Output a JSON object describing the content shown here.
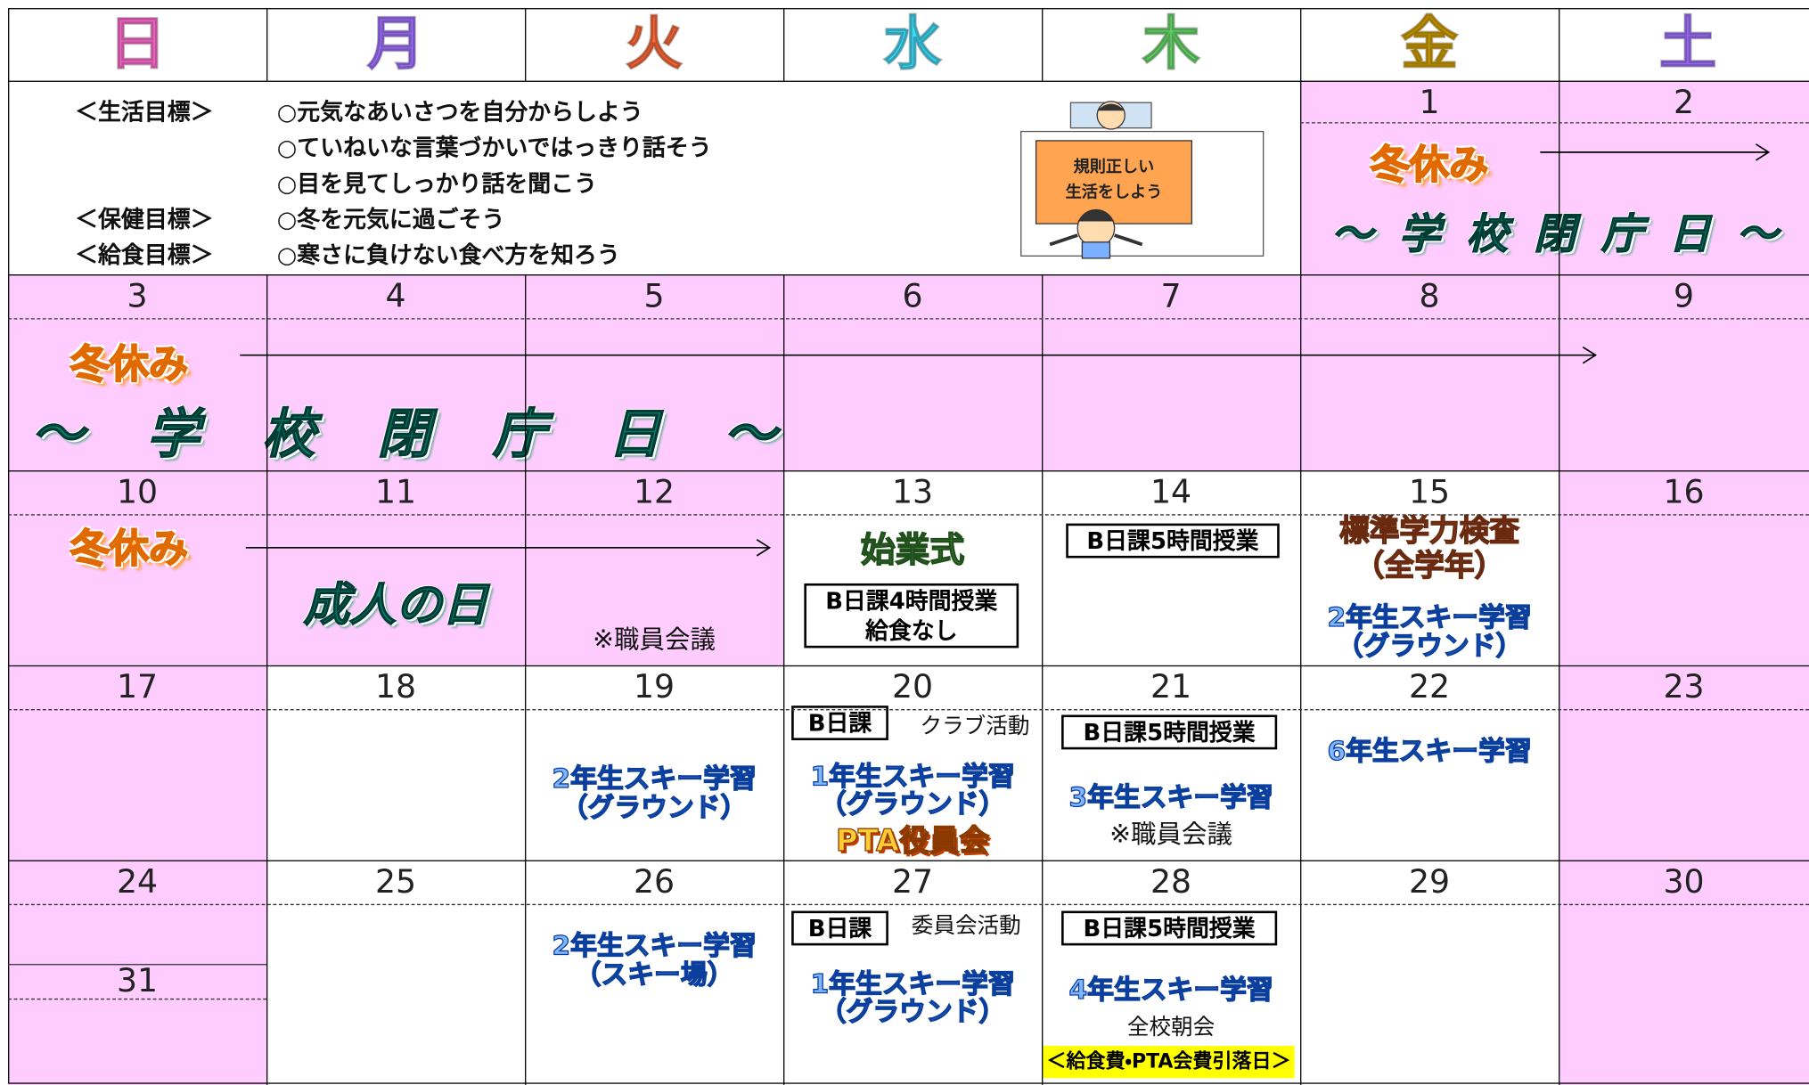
{
  "header": {
    "days": [
      "日",
      "月",
      "火",
      "水",
      "木",
      "金",
      "土"
    ]
  },
  "goals": {
    "life_label": "＜生活目標＞",
    "life": [
      "○元気なあいさつを自分からしよう",
      "○ていねいな言葉づかいではっきり話そう",
      "○目を見てしっかり話を聞こう"
    ],
    "health_label": "＜保健目標＞",
    "health": "○冬を元気に過ごそう",
    "lunch_label": "＜給食目標＞",
    "lunch": "○寒さに負けない食べ方を知ろう",
    "poster": [
      "規則正しい",
      "生活をしよう"
    ]
  },
  "dates": [
    1,
    2,
    3,
    4,
    5,
    6,
    7,
    8,
    9,
    10,
    11,
    12,
    13,
    14,
    15,
    16,
    17,
    18,
    19,
    20,
    21,
    22,
    23,
    24,
    25,
    26,
    27,
    28,
    29,
    30,
    31
  ],
  "events": [
    "冬休み",
    "～ 学 校 閉 庁 日 ～",
    "冬休み",
    "～ 学 校 閉 庁 日 ～",
    "冬休み",
    "成人の日",
    "※職員会議",
    "始業式",
    "B日課4時間授業",
    "給食なし",
    "B日課5時間授業",
    "標準学力検査",
    "（全学年）",
    "2年生スキー学習",
    "（グラウンド）",
    "2年生スキー学習",
    "（グラウンド）",
    "B日課",
    "クラブ活動",
    "1年生スキー学習",
    "（グラウンド）",
    "PTA役員会",
    "B日課5時間授業",
    "3年生スキー学習",
    "※職員会議",
    "6年生スキー学習",
    "2年生スキー学習",
    "（スキー場）",
    "B日課",
    "委員会活動",
    "1年生スキー学習",
    "（グラウンド）",
    "B日課5時間授業",
    "4年生スキー学習",
    "全校朝会",
    "＜給食費・PTA会費引落日＞"
  ]
}
